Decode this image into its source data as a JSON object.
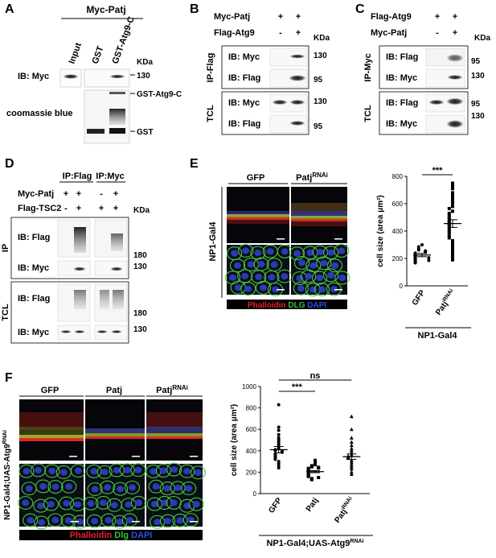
{
  "panels": {
    "A": {
      "letter": "A",
      "header": "Myc-Patj",
      "lanes": [
        "Input",
        "GST",
        "GST-Atg9-C"
      ],
      "blot_label": "IB: Myc",
      "stain_label": "coomassie blue",
      "kda_label": "KDa",
      "mw_130": "130",
      "band_gst_atg9c": "GST-Atg9-C",
      "band_gst": "GST"
    },
    "B": {
      "letter": "B",
      "rows": [
        {
          "label": "Myc-Patj",
          "signs": [
            "+",
            "+"
          ]
        },
        {
          "label": "Flag-Atg9",
          "signs": [
            "-",
            "+"
          ]
        }
      ],
      "kda_label": "KDa",
      "groups": [
        {
          "side": "IP-Flag",
          "blots": [
            {
              "label": "IB: Myc",
              "mw": "130"
            },
            {
              "label": "IB: Flag",
              "mw": "95"
            }
          ]
        },
        {
          "side": "TCL",
          "blots": [
            {
              "label": "IB: Myc",
              "mw": "130"
            },
            {
              "label": "IB: Flag",
              "mw": "95"
            }
          ]
        }
      ]
    },
    "C": {
      "letter": "C",
      "rows": [
        {
          "label": "Flag-Atg9",
          "signs": [
            "+",
            "+"
          ]
        },
        {
          "label": "Myc-Patj",
          "signs": [
            "-",
            "+"
          ]
        }
      ],
      "kda_label": "KDa",
      "groups": [
        {
          "side": "IP-Myc",
          "blots": [
            {
              "label": "IB: Flag",
              "mw": "95"
            },
            {
              "label": "IB: Myc",
              "mw": "130"
            }
          ]
        },
        {
          "side": "TCL",
          "blots": [
            {
              "label": "IB: Flag",
              "mw": "95"
            },
            {
              "label": "IB: Myc",
              "mw": "130"
            }
          ]
        }
      ]
    },
    "D": {
      "letter": "D",
      "ip_headers": [
        "IP:Flag",
        "IP:Myc"
      ],
      "rows": [
        {
          "label": "Myc-Patj",
          "signs": [
            "+",
            "+",
            "-",
            "+"
          ]
        },
        {
          "label": "Flag-TSC2",
          "signs": [
            "-",
            "+",
            "+",
            "+"
          ]
        }
      ],
      "kda_label": "KDa",
      "groups": [
        {
          "side": "IP",
          "blots": [
            {
              "label": "IB: Flag",
              "mw": "180"
            },
            {
              "label": "IB: Myc",
              "mw": "130"
            }
          ]
        },
        {
          "side": "TCL",
          "blots": [
            {
              "label": "IB: Flag",
              "mw": "180"
            },
            {
              "label": "IB: Myc",
              "mw": "130"
            }
          ]
        }
      ]
    },
    "E": {
      "letter": "E",
      "col_headers": [
        "GFP",
        "Patj"
      ],
      "col_sup": "RNAi",
      "row_label": "NP1-Gal4",
      "legend": [
        "Phalloidin",
        "DLG",
        "DAPI"
      ],
      "legend_colors": [
        "#e8202a",
        "#35c23a",
        "#2a4ee8"
      ]
    },
    "F": {
      "letter": "F",
      "col_headers": [
        "GFP",
        "Patj",
        "Patj"
      ],
      "col_sup": "RNAi",
      "row_label": "NP1-Gal4;UAS-Atg9",
      "row_sup": "RNAi",
      "legend": [
        "Phalloidin",
        "Dlg",
        "DAPI"
      ],
      "legend_colors": [
        "#e8202a",
        "#35c23a",
        "#2a4ee8"
      ]
    }
  },
  "chart_data": [
    {
      "type": "scatter",
      "panel": "E",
      "ylabel": "cell size (area μm²)",
      "ylim": [
        0,
        800
      ],
      "yticks": [
        0,
        200,
        400,
        600,
        800
      ],
      "categories": [
        "GFP",
        "Patj"
      ],
      "category_sup": [
        "",
        "RNAi"
      ],
      "group_label": "NP1-Gal4",
      "significance": [
        {
          "pair": [
            0,
            1
          ],
          "label": "***"
        }
      ],
      "series": [
        {
          "mean": 225,
          "sem": 12,
          "values": [
            300,
            285,
            270,
            262,
            255,
            250,
            245,
            240,
            236,
            232,
            228,
            224,
            220,
            216,
            212,
            208,
            205,
            200,
            196,
            192,
            188,
            185,
            180,
            176,
            172,
            168
          ]
        },
        {
          "mean": 455,
          "sem": 28,
          "values": [
            750,
            730,
            710,
            680,
            660,
            640,
            620,
            600,
            580,
            565,
            545,
            530,
            515,
            500,
            485,
            470,
            460,
            450,
            440,
            425,
            410,
            395,
            380,
            365,
            350,
            330,
            310,
            290,
            270,
            250,
            230,
            210,
            190
          ]
        }
      ]
    },
    {
      "type": "scatter",
      "panel": "F",
      "ylabel": "cell size (area μm²)",
      "ylim": [
        0,
        1000
      ],
      "yticks": [
        0,
        200,
        400,
        600,
        800,
        1000
      ],
      "categories": [
        "GFP",
        "Patj",
        "Patj"
      ],
      "category_sup": [
        "",
        "",
        "RNAi"
      ],
      "group_label": "NP1-Gal4;UAS-Atg9",
      "group_sup": "RNAi",
      "significance": [
        {
          "pair": [
            0,
            1
          ],
          "label": "***"
        },
        {
          "pair": [
            0,
            2
          ],
          "label": "ns"
        }
      ],
      "series": [
        {
          "marker": "circle",
          "mean": 410,
          "sem": 30,
          "values": [
            830,
            620,
            590,
            550,
            520,
            500,
            480,
            460,
            440,
            420,
            410,
            400,
            395,
            385,
            370,
            360,
            350,
            340,
            330,
            320,
            300,
            280,
            260,
            240
          ]
        },
        {
          "marker": "square",
          "mean": 205,
          "sem": 10,
          "values": [
            310,
            290,
            270,
            260,
            250,
            245,
            240,
            235,
            230,
            225,
            220,
            215,
            210,
            205,
            200,
            195,
            190,
            185,
            180,
            175,
            170,
            165,
            160,
            150,
            140,
            130
          ]
        },
        {
          "marker": "triangle",
          "mean": 345,
          "sem": 25,
          "values": [
            720,
            600,
            520,
            480,
            450,
            420,
            400,
            380,
            360,
            350,
            340,
            330,
            310,
            290,
            270,
            250,
            230,
            200,
            180
          ]
        }
      ]
    }
  ]
}
